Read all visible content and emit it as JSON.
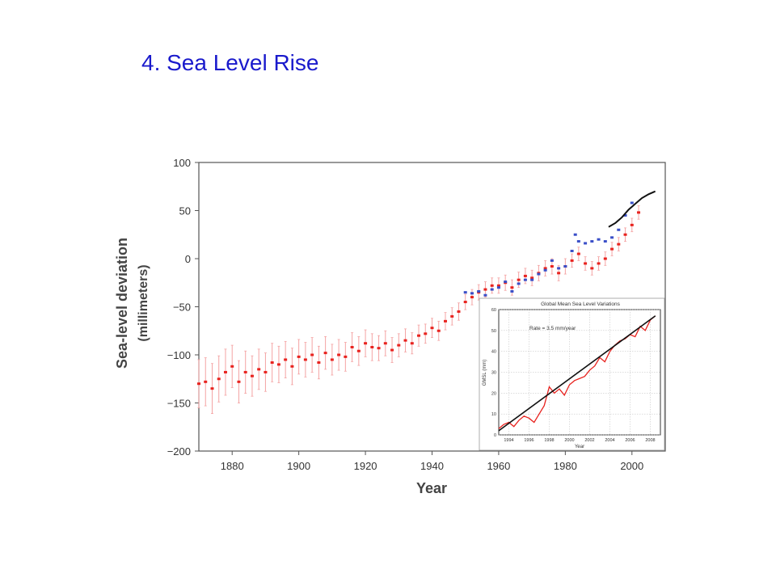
{
  "slide": {
    "title": "4. Sea Level Rise"
  },
  "chart_data": [
    {
      "type": "scatter",
      "xlabel": "Year",
      "ylabel": "Sea-level deviation",
      "ylabel_sub": "(millimeters)",
      "xlim": [
        1870,
        2010
      ],
      "ylim": [
        -200,
        100
      ],
      "x_ticks": [
        1880,
        1900,
        1920,
        1940,
        1960,
        1980,
        2000
      ],
      "y_ticks": [
        100,
        50,
        0,
        -50,
        -100,
        -150,
        -200
      ],
      "y_tick_labels": [
        "100",
        "50",
        "0",
        "−50",
        "−100",
        "−150",
        "−200"
      ],
      "grid": false,
      "series": [
        {
          "color": "#e8231f",
          "style": "points-with-error-bars",
          "x": [
            1870,
            1872,
            1874,
            1876,
            1878,
            1880,
            1882,
            1884,
            1886,
            1888,
            1890,
            1892,
            1894,
            1896,
            1898,
            1900,
            1902,
            1904,
            1906,
            1908,
            1910,
            1912,
            1914,
            1916,
            1918,
            1920,
            1922,
            1924,
            1926,
            1928,
            1930,
            1932,
            1934,
            1936,
            1938,
            1940,
            1942,
            1944,
            1946,
            1948,
            1950,
            1952,
            1954,
            1956,
            1958,
            1960,
            1962,
            1964,
            1966,
            1968,
            1970,
            1972,
            1974,
            1976,
            1978,
            1980,
            1982,
            1984,
            1986,
            1988,
            1990,
            1992,
            1994,
            1996,
            1998,
            2000,
            2002
          ],
          "y": [
            -130,
            -128,
            -135,
            -125,
            -118,
            -112,
            -128,
            -118,
            -122,
            -115,
            -118,
            -108,
            -110,
            -105,
            -112,
            -102,
            -105,
            -100,
            -108,
            -98,
            -105,
            -100,
            -102,
            -92,
            -96,
            -88,
            -92,
            -93,
            -88,
            -95,
            -90,
            -85,
            -88,
            -80,
            -78,
            -72,
            -75,
            -65,
            -60,
            -55,
            -45,
            -40,
            -35,
            -32,
            -28,
            -28,
            -25,
            -30,
            -22,
            -18,
            -20,
            -15,
            -10,
            -8,
            -15,
            -8,
            -2,
            5,
            -5,
            -10,
            -5,
            0,
            10,
            15,
            25,
            35,
            48
          ],
          "error": [
            25,
            25,
            26,
            24,
            24,
            22,
            22,
            22,
            21,
            21,
            20,
            20,
            19,
            19,
            19,
            18,
            18,
            18,
            17,
            17,
            16,
            16,
            15,
            15,
            15,
            14,
            14,
            13,
            13,
            13,
            12,
            12,
            11,
            11,
            10,
            10,
            10,
            9,
            9,
            9,
            8,
            8,
            8,
            8,
            8,
            8,
            8,
            8,
            8,
            8,
            8,
            8,
            8,
            8,
            8,
            8,
            7,
            7,
            7,
            7,
            7,
            7,
            7,
            7,
            7,
            7,
            7
          ]
        },
        {
          "color": "#3a4fc8",
          "style": "points",
          "x": [
            1950,
            1952,
            1954,
            1956,
            1958,
            1960,
            1962,
            1964,
            1966,
            1968,
            1970,
            1972,
            1974,
            1976,
            1978,
            1980,
            1982,
            1983,
            1984,
            1986,
            1988,
            1990,
            1992,
            1994,
            1996,
            1998,
            2000
          ],
          "y": [
            -35,
            -36,
            -34,
            -38,
            -32,
            -30,
            -24,
            -34,
            -26,
            -22,
            -22,
            -16,
            -12,
            -2,
            -10,
            -8,
            8,
            25,
            18,
            16,
            18,
            20,
            18,
            22,
            30,
            45,
            58
          ]
        },
        {
          "color": "#111111",
          "style": "line",
          "x": [
            1993,
            1995,
            1997,
            1999,
            2001,
            2003,
            2005,
            2007
          ],
          "y": [
            33,
            37,
            43,
            51,
            57,
            63,
            67,
            70
          ]
        }
      ]
    },
    {
      "type": "line",
      "title": "Global Mean Sea Level Variations",
      "annotation": "Rate = 3.5 mm/year",
      "xlabel": "Year",
      "ylabel": "GMSL (mm)",
      "xlim": [
        1993,
        2009
      ],
      "ylim": [
        0,
        60
      ],
      "x_ticks": [
        1994,
        1996,
        1998,
        2000,
        2002,
        2004,
        2006,
        2008
      ],
      "y_ticks": [
        0,
        10,
        20,
        30,
        40,
        50,
        60
      ],
      "grid": true,
      "series": [
        {
          "color": "#e8231f",
          "x": [
            1993,
            1993.5,
            1994,
            1994.5,
            1995,
            1995.5,
            1996,
            1996.5,
            1997,
            1997.5,
            1998,
            1998.5,
            1999,
            1999.5,
            2000,
            2000.5,
            2001,
            2001.5,
            2002,
            2002.5,
            2003,
            2003.5,
            2004,
            2004.5,
            2005,
            2005.5,
            2006,
            2006.5,
            2007,
            2007.5,
            2008,
            2008.5
          ],
          "y": [
            3,
            5,
            6,
            4,
            7,
            9,
            8,
            6,
            10,
            14,
            23,
            20,
            22,
            19,
            24,
            26,
            27,
            28,
            31,
            33,
            37,
            35,
            40,
            43,
            45,
            46,
            48,
            47,
            52,
            50,
            55,
            57
          ]
        },
        {
          "color": "#111111",
          "x": [
            1993,
            2008.5
          ],
          "y": [
            2,
            57
          ]
        }
      ]
    }
  ]
}
